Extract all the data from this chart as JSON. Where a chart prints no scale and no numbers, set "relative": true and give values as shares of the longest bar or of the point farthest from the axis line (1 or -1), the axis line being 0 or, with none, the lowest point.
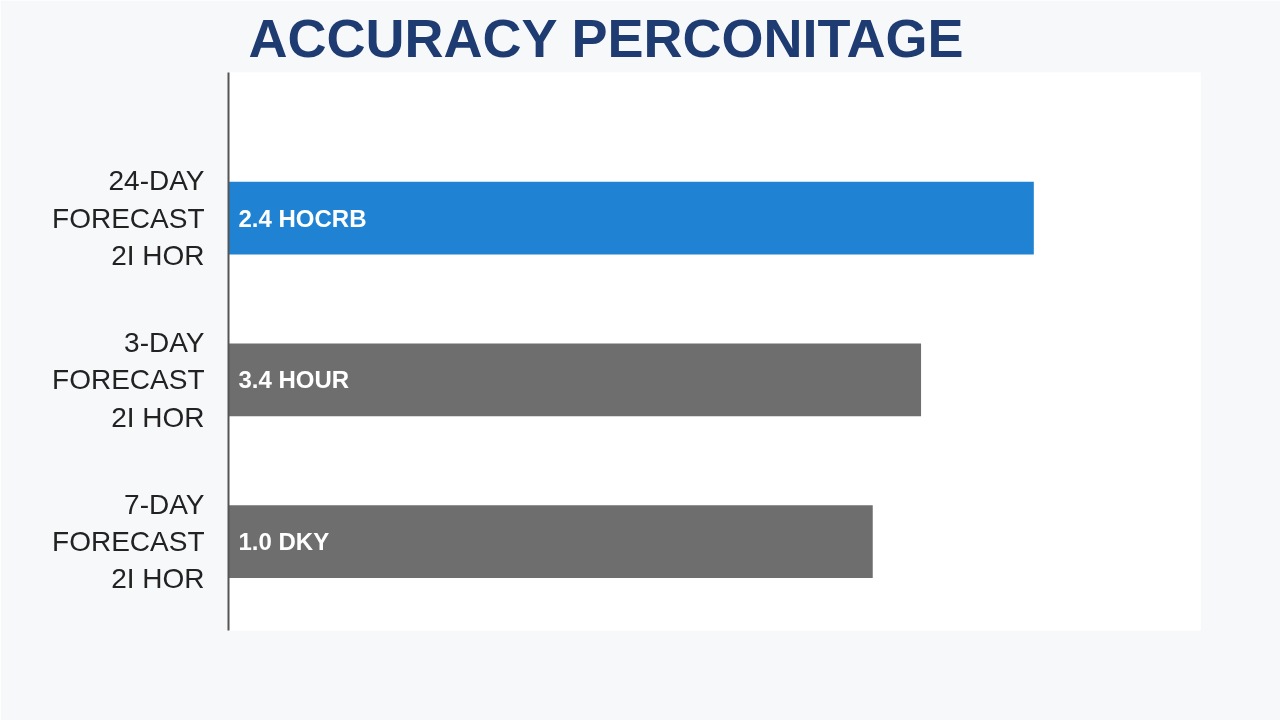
{
  "chart_data": {
    "type": "bar",
    "orientation": "horizontal",
    "relative": true,
    "title": "ACCURACY PERCONITAGE",
    "categories": [
      "24-DAY\nFORECAST\n2I HOR",
      "3-DAY\nFORECAST\n2I HOR",
      "7-DAY\nFORECAST\n2I HOR"
    ],
    "values": [
      1,
      0.86,
      0.8
    ],
    "colors": [
      "#1f82d2",
      "#6e6e6e",
      "#6e6e6e"
    ],
    "annotations": [
      "2.4 HOCRB",
      "3.4 HOUR",
      "1.0 DKY"
    ]
  }
}
